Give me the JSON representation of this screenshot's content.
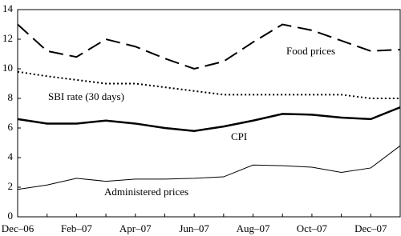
{
  "chart_data": {
    "type": "line",
    "categories": [
      "Dec–06",
      null,
      "Feb–07",
      null,
      "Apr–07",
      null,
      "Jun–07",
      null,
      "Aug–07",
      null,
      "Oct–07",
      null,
      "Dec–07",
      null
    ],
    "series": [
      {
        "name": "Food prices",
        "color": "#000000",
        "style": "dashed",
        "values": [
          13.0,
          11.2,
          10.8,
          12.0,
          11.5,
          10.7,
          10.0,
          10.5,
          11.8,
          13.0,
          12.6,
          11.9,
          11.2,
          11.3
        ]
      },
      {
        "name": "SBI rate (30 days)",
        "color": "#000000",
        "style": "dotted",
        "values": [
          9.8,
          9.5,
          9.25,
          9.0,
          9.0,
          8.75,
          8.5,
          8.25,
          8.25,
          8.25,
          8.25,
          8.25,
          8.0,
          8.0
        ]
      },
      {
        "name": "CPI",
        "color": "#000000",
        "style": "thick",
        "values": [
          6.6,
          6.3,
          6.3,
          6.5,
          6.3,
          6.0,
          5.8,
          6.1,
          6.5,
          6.95,
          6.9,
          6.7,
          6.6,
          7.4
        ]
      },
      {
        "name": "Administered prices",
        "color": "#000000",
        "style": "thin",
        "values": [
          1.85,
          2.15,
          2.6,
          2.4,
          2.55,
          2.55,
          2.6,
          2.7,
          3.5,
          3.45,
          3.35,
          3.0,
          3.3,
          4.8
        ]
      }
    ],
    "ylim": [
      0,
      14
    ],
    "yticks": [
      0,
      2,
      4,
      6,
      8,
      10,
      12,
      14
    ]
  }
}
